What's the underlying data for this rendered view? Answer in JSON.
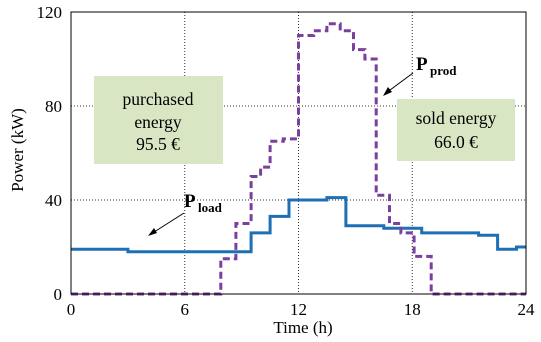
{
  "chart_data": {
    "type": "line",
    "xlabel": "Time (h)",
    "ylabel": "Power (kW)",
    "xlim": [
      0,
      24
    ],
    "ylim": [
      0,
      120
    ],
    "xticks": [
      "0",
      "6",
      "12",
      "18",
      "24"
    ],
    "yticks": [
      "0",
      "40",
      "80",
      "120"
    ],
    "grid": "dotted",
    "series": [
      {
        "name": "P_load",
        "label_main": "P",
        "label_sub": "load",
        "color": "#1f6fb5",
        "style": "solid",
        "step": true,
        "x": [
          0,
          1,
          2,
          2.5,
          3,
          4,
          5,
          6,
          7,
          8,
          8.8,
          9.5,
          10.5,
          11.5,
          12.5,
          13.5,
          14.5,
          15.5,
          16.5,
          17.5,
          18.5,
          19.5,
          20.5,
          21.5,
          22.5,
          23.5
        ],
        "y": [
          19,
          19,
          19,
          19,
          18,
          18,
          18,
          18,
          18,
          18,
          18,
          26,
          33,
          40,
          40,
          41,
          29,
          29,
          28,
          28,
          26,
          26,
          26,
          25,
          19,
          20
        ]
      },
      {
        "name": "P_prod",
        "label_main": "P",
        "label_sub": "prod",
        "color": "#7b3f9e",
        "style": "dashed",
        "step": true,
        "x": [
          0,
          1,
          2,
          3,
          4,
          5,
          6,
          7,
          7.9,
          8.7,
          9.5,
          10,
          10.5,
          11.2,
          12,
          12.8,
          13.5,
          14.2,
          14.9,
          15.5,
          16.1,
          16.8,
          17.4,
          18.1,
          19,
          20,
          21,
          22,
          23
        ],
        "y": [
          0,
          0,
          0,
          0,
          0,
          0,
          0,
          0,
          15,
          30,
          50,
          54,
          65,
          66,
          110,
          112,
          115,
          112,
          104,
          100,
          42,
          30,
          26,
          16,
          0,
          0,
          0,
          0,
          0
        ]
      }
    ],
    "annotations": [
      {
        "lines": [
          "purchased",
          "energy",
          "95.5 €"
        ]
      },
      {
        "lines": [
          "sold energy",
          "66.0 €"
        ]
      }
    ],
    "box_color": "#d8e6c4"
  }
}
